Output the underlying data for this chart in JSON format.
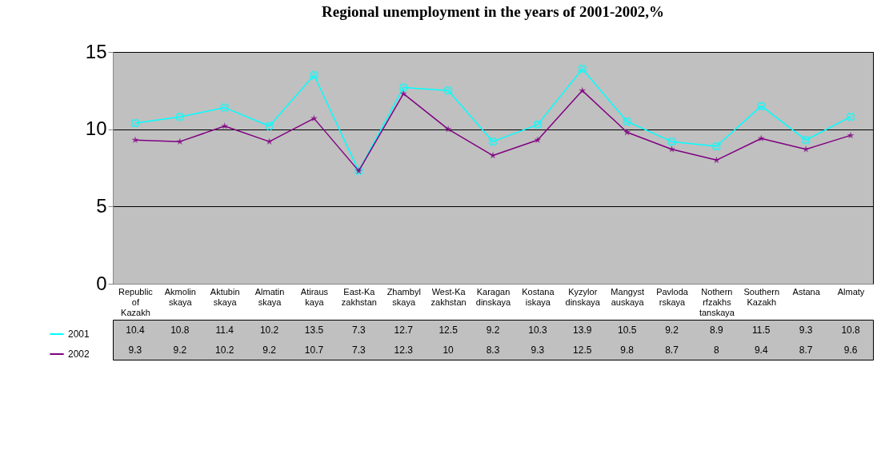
{
  "chart_data": {
    "type": "line",
    "title": "Regional unemployment in the years of  2001-2002,%",
    "categories": [
      "Republic of Kazakh",
      "Akmolinskaya",
      "Aktubinskaya",
      "Almatinskaya",
      "Atirauskaya",
      "East-Kazakhstan",
      "Zhambylskaya",
      "West-Kazakhstan",
      "Karagandinskaya",
      "Kostanaiskaya",
      "Kyzylordinskaya",
      "Mangystauskaya",
      "Pavlodarskaya",
      "Nothernrfzakhstanskaya",
      "Southern Kazakh",
      "Astana",
      "Almaty"
    ],
    "series": [
      {
        "name": "2001",
        "color": "#00ffff",
        "marker": "cross",
        "values": [
          10.4,
          10.8,
          11.4,
          10.2,
          13.5,
          7.3,
          12.7,
          12.5,
          9.2,
          10.3,
          13.9,
          10.5,
          9.2,
          8.9,
          11.5,
          9.3,
          10.8
        ]
      },
      {
        "name": "2002",
        "color": "#800080",
        "marker": "star",
        "values": [
          9.3,
          9.2,
          10.2,
          9.2,
          10.7,
          7.3,
          12.3,
          10,
          8.3,
          9.3,
          12.5,
          9.8,
          8.7,
          8,
          9.4,
          8.7,
          9.6
        ]
      }
    ],
    "ylim": [
      0,
      15
    ],
    "yticks": [
      0,
      5,
      10,
      15
    ],
    "grid": "y",
    "legend": "bottom left",
    "data_labels": true,
    "line_style": "solid"
  }
}
